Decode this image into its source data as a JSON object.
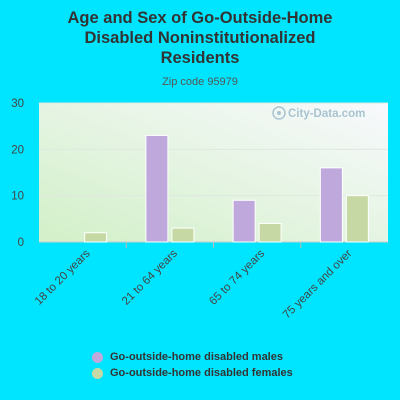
{
  "header": {
    "title_lines": [
      "Age and Sex of Go-Outside-Home",
      "Disabled Noninstitutionalized",
      "Residents"
    ],
    "subtitle": "Zip code 95979"
  },
  "watermark": "City-Data.com",
  "colors": {
    "background": "#00e5ff",
    "male": "#bfa8dc",
    "female": "#c6d9a4"
  },
  "chart_data": {
    "type": "bar",
    "categories": [
      "18 to 20 years",
      "21 to 64 years",
      "65 to 74 years",
      "75 years and over"
    ],
    "series": [
      {
        "name": "Go-outside-home disabled males",
        "values": [
          0,
          23,
          9,
          16
        ]
      },
      {
        "name": "Go-outside-home disabled females",
        "values": [
          2,
          3,
          4,
          10
        ]
      }
    ],
    "ylim": [
      0,
      30
    ],
    "yticks": [
      0,
      10,
      20,
      30
    ],
    "grid": true,
    "legend_position": "bottom"
  }
}
